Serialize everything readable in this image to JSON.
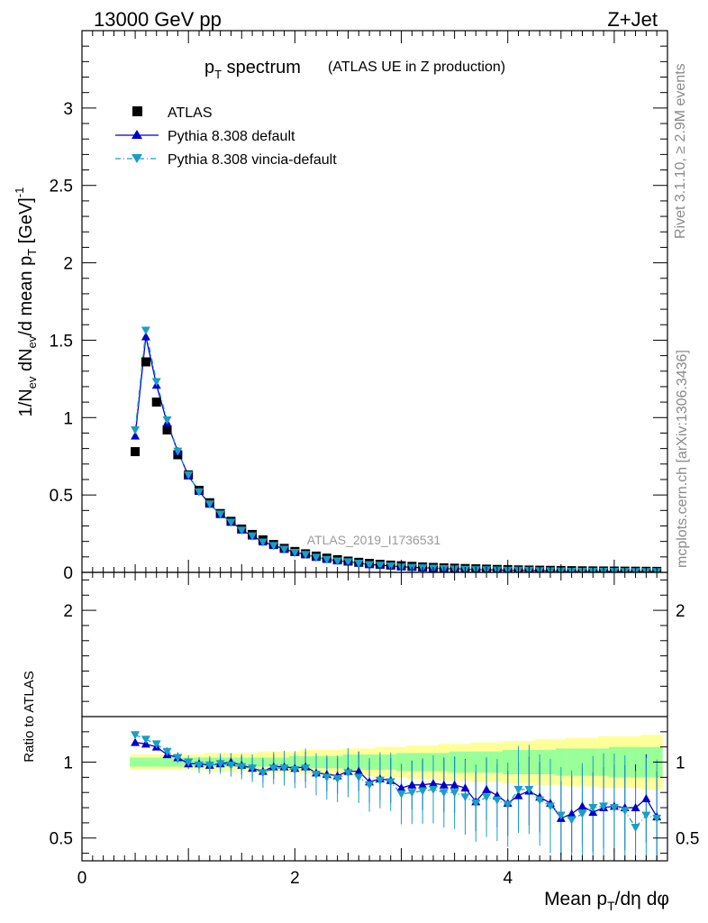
{
  "header": {
    "left": "13000 GeV pp",
    "right": "Z+Jet"
  },
  "side_labels": {
    "rivet": "Rivet 3.1.10, ≥ 2.9M events",
    "mcplots": "mcplots.cern.ch [arXiv:1306.3436]"
  },
  "watermark": "ATLAS_2019_I1736531",
  "chart_data": {
    "type": "scatter",
    "title": "pT spectrum",
    "title_main": "p",
    "title_sub": "T",
    "title_rest": " spectrum",
    "subtitle": "(ATLAS UE in Z production)",
    "xlabel": "Mean pT/dη dφ",
    "xlabel_a": "Mean p",
    "xlabel_sub": "T",
    "xlabel_b": "/dη dφ",
    "ylabel": "1/Nev dNev/d mean pT [GeV]^-1",
    "ratio_ylabel": "Ratio to ATLAS",
    "xlim": [
      0,
      5.5
    ],
    "ylim": [
      0,
      3.5
    ],
    "ratio_ylim": [
      0.35,
      2.25
    ],
    "x_ticks": [
      "0",
      "2",
      "4"
    ],
    "x_tick_values": [
      0,
      2,
      4
    ],
    "y_ticks": [
      "0",
      "0.5",
      "1",
      "1.5",
      "2",
      "2.5",
      "3"
    ],
    "y_tick_values": [
      0,
      0.5,
      1,
      1.5,
      2,
      2.5,
      3
    ],
    "ratio_ticks": [
      "0.5",
      "1",
      "2"
    ],
    "ratio_tick_values": [
      0.5,
      1,
      2
    ],
    "legend": [
      "ATLAS",
      "Pythia 8.308 default",
      "Pythia 8.308 vincia-default"
    ],
    "colors": {
      "data": "#000000",
      "default": "#0000cc",
      "vincia": "#1a9ec4",
      "band_inner": "#99ff99",
      "band_outer": "#ffff99"
    },
    "x": [
      0.5,
      0.6,
      0.7,
      0.8,
      0.9,
      1.0,
      1.1,
      1.2,
      1.3,
      1.4,
      1.5,
      1.6,
      1.7,
      1.8,
      1.9,
      2.0,
      2.1,
      2.2,
      2.3,
      2.4,
      2.5,
      2.6,
      2.7,
      2.8,
      2.9,
      3.0,
      3.1,
      3.2,
      3.3,
      3.4,
      3.5,
      3.6,
      3.7,
      3.8,
      3.9,
      4.0,
      4.1,
      4.2,
      4.3,
      4.4,
      4.5,
      4.6,
      4.7,
      4.8,
      4.9,
      5.0,
      5.1,
      5.2,
      5.3,
      5.4
    ],
    "series": [
      {
        "name": "ATLAS",
        "values": [
          0.78,
          1.36,
          1.1,
          0.92,
          0.76,
          0.63,
          0.53,
          0.45,
          0.38,
          0.33,
          0.28,
          0.245,
          0.21,
          0.18,
          0.155,
          0.135,
          0.12,
          0.105,
          0.092,
          0.082,
          0.073,
          0.065,
          0.058,
          0.052,
          0.047,
          0.043,
          0.039,
          0.035,
          0.032,
          0.029,
          0.027,
          0.025,
          0.023,
          0.021,
          0.019,
          0.018,
          0.016,
          0.015,
          0.014,
          0.013,
          0.012,
          0.011,
          0.01,
          0.0095,
          0.009,
          0.0085,
          0.008,
          0.0075,
          0.007,
          0.0065
        ]
      },
      {
        "name": "Pythia 8.308 default",
        "ratio": [
          1.13,
          1.12,
          1.1,
          1.05,
          1.03,
          0.99,
          0.99,
          0.98,
          0.99,
          1.0,
          0.98,
          0.96,
          0.94,
          0.97,
          0.97,
          0.96,
          0.97,
          0.93,
          0.92,
          0.91,
          0.94,
          0.94,
          0.87,
          0.89,
          0.88,
          0.83,
          0.85,
          0.85,
          0.86,
          0.85,
          0.85,
          0.83,
          0.74,
          0.82,
          0.78,
          0.73,
          0.78,
          0.81,
          0.77,
          0.73,
          0.63,
          0.66,
          0.71,
          0.67,
          0.7,
          0.71,
          0.7,
          0.7,
          0.76,
          0.64
        ]
      },
      {
        "name": "Pythia 8.308 vincia-default",
        "ratio": [
          1.18,
          1.15,
          1.12,
          1.07,
          1.03,
          1.0,
          0.98,
          0.98,
          0.99,
          0.98,
          0.97,
          0.96,
          0.93,
          0.96,
          0.96,
          0.95,
          0.96,
          0.92,
          0.9,
          0.89,
          0.93,
          0.9,
          0.85,
          0.88,
          0.87,
          0.79,
          0.8,
          0.81,
          0.82,
          0.8,
          0.8,
          0.77,
          0.73,
          0.77,
          0.75,
          0.72,
          0.82,
          0.82,
          0.75,
          0.71,
          0.65,
          0.62,
          0.66,
          0.7,
          0.71,
          0.7,
          0.68,
          0.57,
          0.65,
          0.63
        ]
      }
    ],
    "band": {
      "inner": [
        0.03,
        0.03,
        0.03,
        0.03,
        0.03,
        0.03,
        0.03,
        0.03,
        0.03,
        0.03,
        0.03,
        0.03,
        0.03,
        0.03,
        0.03,
        0.04,
        0.04,
        0.04,
        0.04,
        0.04,
        0.05,
        0.05,
        0.05,
        0.05,
        0.05,
        0.06,
        0.06,
        0.06,
        0.06,
        0.06,
        0.07,
        0.07,
        0.07,
        0.07,
        0.07,
        0.08,
        0.08,
        0.08,
        0.08,
        0.08,
        0.09,
        0.09,
        0.09,
        0.09,
        0.09,
        0.1,
        0.1,
        0.1,
        0.1,
        0.1
      ],
      "outer": [
        0.05,
        0.05,
        0.05,
        0.05,
        0.05,
        0.05,
        0.05,
        0.06,
        0.06,
        0.06,
        0.06,
        0.06,
        0.07,
        0.07,
        0.07,
        0.07,
        0.08,
        0.08,
        0.08,
        0.08,
        0.09,
        0.09,
        0.09,
        0.1,
        0.1,
        0.1,
        0.11,
        0.11,
        0.11,
        0.12,
        0.12,
        0.12,
        0.13,
        0.13,
        0.13,
        0.14,
        0.14,
        0.14,
        0.15,
        0.15,
        0.15,
        0.16,
        0.16,
        0.16,
        0.17,
        0.17,
        0.17,
        0.17,
        0.18,
        0.18
      ]
    }
  }
}
